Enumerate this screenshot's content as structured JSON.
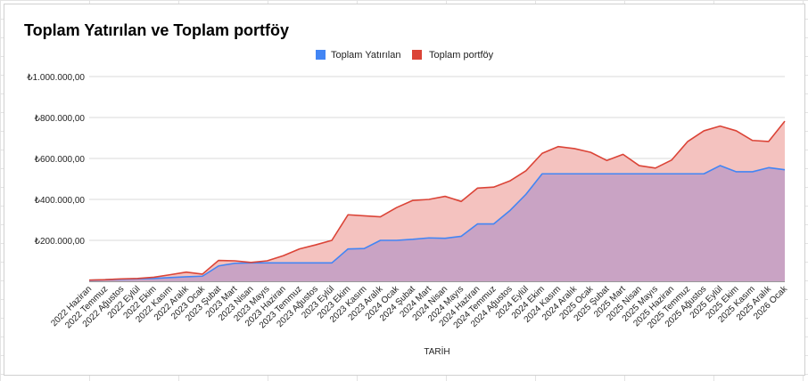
{
  "chart_data": {
    "type": "area",
    "title": "Toplam Yatırılan ve Toplam portföy",
    "xlabel": "TARİH",
    "ylabel": "",
    "ylim": [
      0,
      1000000
    ],
    "yticks": [
      200000,
      400000,
      600000,
      800000,
      1000000
    ],
    "ytick_labels": [
      "₺200.000,00",
      "₺400.000,00",
      "₺600.000,00",
      "₺800.000,00",
      "₺1.000.000,00"
    ],
    "grid": true,
    "legend_position": "top-center",
    "categories": [
      "2022 Haziran",
      "2022 Temmuz",
      "2022 Ağustos",
      "2022 Eylül",
      "2022 Ekim",
      "2022 Kasım",
      "2022 Aralık",
      "2023 Ocak",
      "2023 Şubat",
      "2023 Mart",
      "2023 Nisan",
      "2023 Mayıs",
      "2023 Haziran",
      "2023 Temmuz",
      "2023 Ağustos",
      "2023 Eylül",
      "2023 Ekim",
      "2023 Kasım",
      "2023 Aralık",
      "2024 Ocak",
      "2024 Şubat",
      "2024 Mart",
      "2024 Nisan",
      "2024 Mayıs",
      "2024 Haziran",
      "2024 Temmuz",
      "2024 Ağustos",
      "2024 Eylül",
      "2024 Ekim",
      "2024 Kasım",
      "2024 Aralık",
      "2025 Ocak",
      "2025 Şubat",
      "2025 Mart",
      "2025 Nisan",
      "2025 Mayıs",
      "2025 Haziran",
      "2025 Temmuz",
      "2025 Ağustos",
      "2025 Eylül",
      "2025 Ekim",
      "2025 Kasım",
      "2025 Aralık",
      "2026 Ocak"
    ],
    "series": [
      {
        "name": "Toplam Yatırılan",
        "color": "#4285f4",
        "fill": "#c9a3c4",
        "values": [
          5000,
          8000,
          10000,
          12000,
          14000,
          18000,
          22000,
          25000,
          75000,
          88000,
          90000,
          90000,
          90000,
          90000,
          90000,
          90000,
          158000,
          160000,
          200000,
          200000,
          205000,
          212000,
          210000,
          220000,
          280000,
          280000,
          345000,
          425000,
          525000,
          525000,
          525000,
          525000,
          525000,
          525000,
          525000,
          525000,
          525000,
          525000,
          525000,
          565000,
          535000,
          535000,
          555000,
          545000
        ]
      },
      {
        "name": "Toplam portföy",
        "color": "#db4437",
        "fill": "#f4c2bf",
        "values": [
          6000,
          8000,
          12000,
          14000,
          20000,
          32000,
          45000,
          35000,
          102000,
          100000,
          92000,
          100000,
          125000,
          158000,
          178000,
          200000,
          325000,
          320000,
          315000,
          360000,
          395000,
          400000,
          415000,
          390000,
          455000,
          460000,
          490000,
          540000,
          625000,
          658000,
          648000,
          630000,
          590000,
          620000,
          565000,
          553000,
          592000,
          683000,
          735000,
          758000,
          735000,
          688000,
          683000,
          782000
        ]
      }
    ]
  }
}
